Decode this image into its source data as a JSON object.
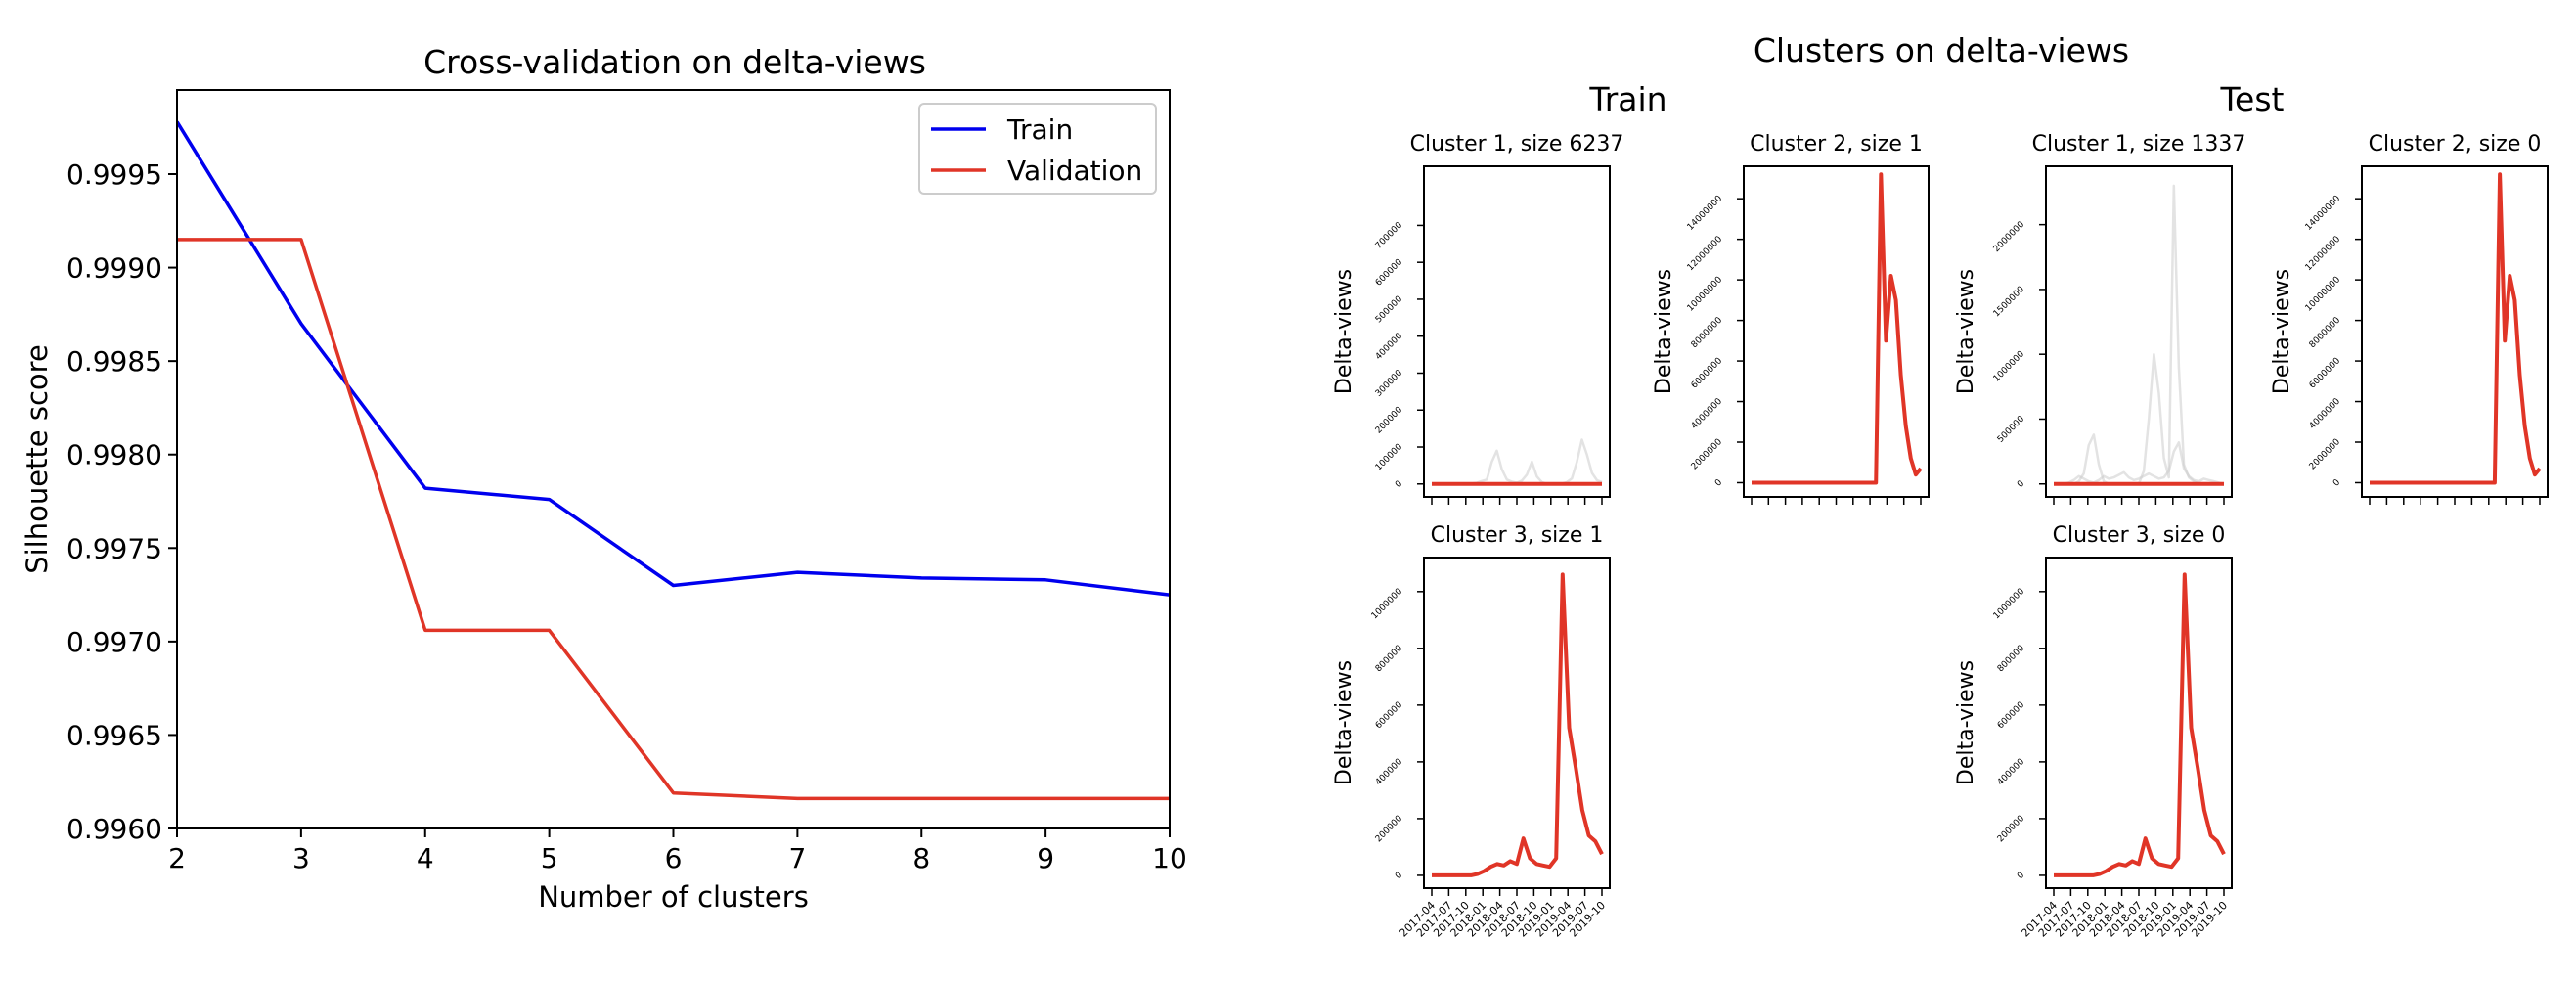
{
  "figure": {
    "left_title": "Cross-validation on delta-views",
    "right_title": "Clusters on delta-views",
    "train_heading": "Train",
    "test_heading": "Test"
  },
  "chart_data": [
    {
      "type": "line",
      "title": "Cross-validation on delta-views",
      "xlabel": "Number of clusters",
      "ylabel": "Silhouette score",
      "x": [
        2,
        3,
        4,
        5,
        6,
        7,
        8,
        9,
        10
      ],
      "xlim": [
        2,
        10
      ],
      "ylim": [
        0.996,
        0.99995
      ],
      "xticks": [
        "2",
        "3",
        "4",
        "5",
        "6",
        "7",
        "8",
        "9",
        "10"
      ],
      "yticks": [
        {
          "value": 0.9995,
          "label": "0.9995"
        },
        {
          "value": 0.999,
          "label": "0.9990"
        },
        {
          "value": 0.9985,
          "label": "0.9985"
        },
        {
          "value": 0.998,
          "label": "0.9980"
        },
        {
          "value": 0.9975,
          "label": "0.9975"
        },
        {
          "value": 0.997,
          "label": "0.9970"
        },
        {
          "value": 0.9965,
          "label": "0.9965"
        },
        {
          "value": 0.996,
          "label": "0.9960"
        }
      ],
      "legend_position": "top-right",
      "series": [
        {
          "name": "Train",
          "color": "#0000ee",
          "values": [
            0.99978,
            0.9987,
            0.99782,
            0.99776,
            0.9973,
            0.99737,
            0.99734,
            0.99733,
            0.99725
          ]
        },
        {
          "name": "Validation",
          "color": "#e03527",
          "values": [
            0.99915,
            0.99915,
            0.99706,
            0.99706,
            0.99619,
            0.99616,
            0.99616,
            0.99616,
            0.99616
          ]
        }
      ]
    },
    {
      "type": "line",
      "group": "Train",
      "title": "Cluster 1, size 6237",
      "ylabel": "Delta-views",
      "ylim": [
        -35000,
        860000
      ],
      "yticks": [
        {
          "value": 0,
          "label": "0"
        },
        {
          "value": 100000,
          "label": "100000"
        },
        {
          "value": 200000,
          "label": "200000"
        },
        {
          "value": 300000,
          "label": "300000"
        },
        {
          "value": 400000,
          "label": "400000"
        },
        {
          "value": 500000,
          "label": "500000"
        },
        {
          "value": 600000,
          "label": "600000"
        },
        {
          "value": 700000,
          "label": "700000"
        }
      ],
      "centroid_color": "#e03527",
      "member_color": "#cccccc",
      "centroid": [
        0,
        0,
        0,
        0,
        0,
        0,
        0,
        0,
        0,
        0,
        0,
        0,
        0,
        0,
        0,
        0,
        0,
        0,
        0,
        0,
        0,
        0,
        0,
        0,
        0,
        0,
        0,
        0,
        0,
        0,
        0,
        0,
        0,
        0,
        0
      ],
      "members": [
        [
          0,
          0,
          0,
          0,
          0,
          0,
          0,
          0,
          1000,
          3000,
          8000,
          12000,
          60000,
          90000,
          40000,
          12000,
          6000,
          3000,
          2000,
          1000,
          0,
          0,
          0,
          0,
          0,
          0,
          0,
          0,
          0,
          0,
          0,
          0,
          0,
          0,
          0
        ],
        [
          0,
          0,
          0,
          0,
          0,
          0,
          0,
          0,
          0,
          0,
          0,
          0,
          0,
          0,
          0,
          0,
          0,
          3000,
          9000,
          25000,
          60000,
          20000,
          5000,
          0,
          0,
          0,
          0,
          0,
          0,
          0,
          0,
          0,
          0,
          0,
          0
        ],
        [
          0,
          0,
          0,
          0,
          0,
          0,
          0,
          0,
          0,
          0,
          0,
          0,
          0,
          0,
          0,
          0,
          0,
          0,
          0,
          0,
          0,
          0,
          0,
          0,
          0,
          0,
          1000,
          5000,
          15000,
          60000,
          120000,
          80000,
          30000,
          10000,
          5000
        ]
      ]
    },
    {
      "type": "line",
      "group": "Train",
      "title": "Cluster 2, size 1",
      "ylabel": "Delta-views",
      "ylim": [
        -700000,
        15600000
      ],
      "yticks": [
        {
          "value": 0,
          "label": "0"
        },
        {
          "value": 2000000,
          "label": "2000000"
        },
        {
          "value": 4000000,
          "label": "4000000"
        },
        {
          "value": 6000000,
          "label": "6000000"
        },
        {
          "value": 8000000,
          "label": "8000000"
        },
        {
          "value": 10000000,
          "label": "10000000"
        },
        {
          "value": 12000000,
          "label": "12000000"
        },
        {
          "value": 14000000,
          "label": "14000000"
        }
      ],
      "centroid_color": "#e03527",
      "centroid": [
        0,
        0,
        0,
        0,
        0,
        0,
        0,
        0,
        0,
        0,
        0,
        0,
        0,
        0,
        0,
        0,
        0,
        0,
        0,
        0,
        0,
        0,
        0,
        0,
        0,
        0,
        15200000,
        7000000,
        10200000,
        9000000,
        5300000,
        2800000,
        1200000,
        400000,
        700000
      ]
    },
    {
      "type": "line",
      "group": "Train",
      "title": "Cluster 3, size 1",
      "ylabel": "Delta-views",
      "xlabel_rotated": true,
      "ylim": [
        -45000,
        1120000
      ],
      "yticks": [
        {
          "value": 0,
          "label": "0"
        },
        {
          "value": 200000,
          "label": "200000"
        },
        {
          "value": 400000,
          "label": "400000"
        },
        {
          "value": 600000,
          "label": "600000"
        },
        {
          "value": 800000,
          "label": "800000"
        },
        {
          "value": 1000000,
          "label": "1000000"
        }
      ],
      "xticks": [
        "2017-04",
        "2017-07",
        "2017-10",
        "2018-01",
        "2018-04",
        "2018-07",
        "2018-10",
        "2019-01",
        "2019-04",
        "2019-07",
        "2019-10"
      ],
      "centroid_color": "#e03527",
      "centroid": [
        0,
        0,
        0,
        0,
        0,
        0,
        0,
        5000,
        15000,
        30000,
        40000,
        35000,
        50000,
        40000,
        130000,
        60000,
        40000,
        35000,
        30000,
        60000,
        1060000,
        520000,
        380000,
        230000,
        140000,
        120000,
        75000
      ]
    },
    {
      "type": "line",
      "group": "Test",
      "title": "Cluster 1, size 1337",
      "ylabel": "Delta-views",
      "ylim": [
        -100000,
        2450000
      ],
      "yticks": [
        {
          "value": 0,
          "label": "0"
        },
        {
          "value": 500000,
          "label": "500000"
        },
        {
          "value": 1000000,
          "label": "1000000"
        },
        {
          "value": 1500000,
          "label": "1500000"
        },
        {
          "value": 2000000,
          "label": "2000000"
        }
      ],
      "centroid_color": "#e03527",
      "member_color": "#cccccc",
      "centroid": [
        0,
        0,
        0,
        0,
        0,
        0,
        0,
        0,
        0,
        0,
        0,
        0,
        0,
        0,
        0,
        0,
        0,
        0,
        0,
        0,
        0,
        0,
        0,
        0,
        0,
        0,
        0,
        0,
        0,
        0,
        0,
        0,
        0,
        0,
        0
      ],
      "members": [
        [
          0,
          0,
          0,
          0,
          0,
          20000,
          80000,
          300000,
          380000,
          150000,
          20000,
          0,
          0,
          0,
          0,
          0,
          0,
          0,
          0,
          0,
          0,
          0,
          0,
          0,
          0,
          0,
          0,
          0,
          0,
          0,
          0,
          0,
          0,
          0,
          0
        ],
        [
          0,
          0,
          0,
          0,
          0,
          0,
          0,
          0,
          0,
          0,
          0,
          0,
          0,
          0,
          0,
          0,
          0,
          0,
          100000,
          500000,
          1000000,
          700000,
          200000,
          50000,
          2300000,
          900000,
          150000,
          50000,
          20000,
          0,
          0,
          0,
          0,
          0,
          0
        ],
        [
          0,
          0,
          0,
          10000,
          30000,
          60000,
          40000,
          20000,
          10000,
          30000,
          60000,
          40000,
          50000,
          70000,
          90000,
          50000,
          30000,
          40000,
          60000,
          80000,
          60000,
          40000,
          50000,
          100000,
          250000,
          320000,
          120000,
          60000,
          30000,
          20000,
          40000,
          30000,
          20000,
          10000,
          0
        ]
      ]
    },
    {
      "type": "line",
      "group": "Test",
      "title": "Cluster 2, size 0",
      "ylabel": "Delta-views",
      "ylim": [
        -700000,
        15600000
      ],
      "yticks": [
        {
          "value": 0,
          "label": "0"
        },
        {
          "value": 2000000,
          "label": "2000000"
        },
        {
          "value": 4000000,
          "label": "4000000"
        },
        {
          "value": 6000000,
          "label": "6000000"
        },
        {
          "value": 8000000,
          "label": "8000000"
        },
        {
          "value": 10000000,
          "label": "10000000"
        },
        {
          "value": 12000000,
          "label": "12000000"
        },
        {
          "value": 14000000,
          "label": "14000000"
        }
      ],
      "centroid_color": "#e03527",
      "centroid": [
        0,
        0,
        0,
        0,
        0,
        0,
        0,
        0,
        0,
        0,
        0,
        0,
        0,
        0,
        0,
        0,
        0,
        0,
        0,
        0,
        0,
        0,
        0,
        0,
        0,
        0,
        15200000,
        7000000,
        10200000,
        9000000,
        5300000,
        2800000,
        1200000,
        400000,
        700000
      ]
    },
    {
      "type": "line",
      "group": "Test",
      "title": "Cluster 3, size 0",
      "ylabel": "Delta-views",
      "xlabel_rotated": true,
      "ylim": [
        -45000,
        1120000
      ],
      "yticks": [
        {
          "value": 0,
          "label": "0"
        },
        {
          "value": 200000,
          "label": "200000"
        },
        {
          "value": 400000,
          "label": "400000"
        },
        {
          "value": 600000,
          "label": "600000"
        },
        {
          "value": 800000,
          "label": "800000"
        },
        {
          "value": 1000000,
          "label": "1000000"
        }
      ],
      "xticks": [
        "2017-04",
        "2017-07",
        "2017-10",
        "2018-01",
        "2018-04",
        "2018-07",
        "2018-10",
        "2019-01",
        "2019-04",
        "2019-07",
        "2019-10"
      ],
      "centroid_color": "#e03527",
      "centroid": [
        0,
        0,
        0,
        0,
        0,
        0,
        0,
        5000,
        15000,
        30000,
        40000,
        35000,
        50000,
        40000,
        130000,
        60000,
        40000,
        35000,
        30000,
        60000,
        1060000,
        520000,
        380000,
        230000,
        140000,
        120000,
        75000
      ]
    }
  ]
}
